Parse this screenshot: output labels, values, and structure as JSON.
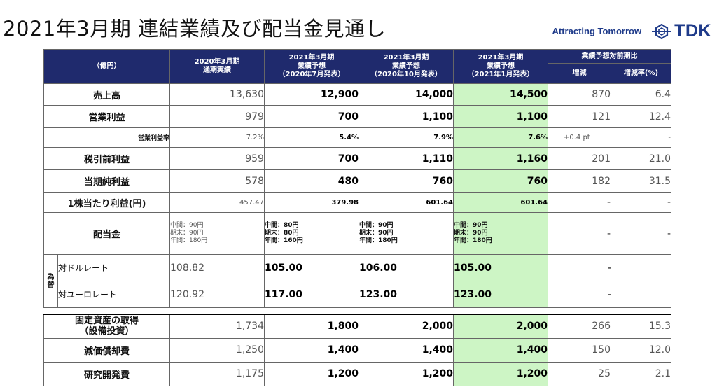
{
  "title": "2021年3月期 連結業績及び配当金見通し",
  "tagline": "Attracting Tomorrow",
  "logo_text": "TDK",
  "unit": "（億円）",
  "headers": {
    "col1": [
      "2020年3月期",
      "通期実績"
    ],
    "col2": [
      "2021年3月期",
      "業績予想",
      "（2020年7月発表）"
    ],
    "col3": [
      "2021年3月期",
      "業績予想",
      "（2020年10月発表）"
    ],
    "col4": [
      "2021年3月期",
      "業績予想",
      "（2021年1月発表）"
    ],
    "compare": "業績予想対前期比",
    "diff": "増減",
    "diff_pct": "増減率(%)"
  },
  "rows": {
    "sales": {
      "label": "売上高",
      "v": [
        "13,630",
        "12,900",
        "14,000",
        "14,500",
        "870",
        "6.4"
      ]
    },
    "op": {
      "label": "営業利益",
      "v": [
        "979",
        "700",
        "1,100",
        "1,100",
        "121",
        "12.4"
      ]
    },
    "margin": {
      "label": "営業利益率",
      "v": [
        "7.2%",
        "5.4%",
        "7.9%",
        "7.6%",
        "+0.4 pt",
        "-"
      ]
    },
    "pretax": {
      "label": "税引前利益",
      "v": [
        "959",
        "700",
        "1,110",
        "1,160",
        "201",
        "21.0"
      ]
    },
    "net": {
      "label": "当期純利益",
      "v": [
        "578",
        "480",
        "760",
        "760",
        "182",
        "31.5"
      ]
    },
    "eps": {
      "label": "1株当たり利益(円)",
      "v": [
        "457.47",
        "379.98",
        "601.64",
        "601.64",
        "-",
        "-"
      ]
    },
    "dividend": {
      "label": "配当金",
      "c1": [
        "中間：90円",
        "期末：90円",
        "年間：180円"
      ],
      "c2": [
        "中間：80円",
        "期末：80円",
        "年間：160円"
      ],
      "c3": [
        "中間：90円",
        "期末：90円",
        "年間：180円"
      ],
      "c4": [
        "中間：90円",
        "期末：90円",
        "年間：180円"
      ],
      "d": [
        "-",
        "-"
      ]
    },
    "fx": {
      "group": [
        "為",
        "替"
      ],
      "usd": {
        "label": "対ドルレート",
        "v": [
          "108.82",
          "105.00",
          "106.00",
          "105.00",
          "-"
        ]
      },
      "eur": {
        "label": "対ユーロレート",
        "v": [
          "120.92",
          "117.00",
          "123.00",
          "123.00",
          "-"
        ]
      }
    },
    "capex": {
      "label": [
        "固定資産の取得",
        "（設備投資）"
      ],
      "v": [
        "1,734",
        "1,800",
        "2,000",
        "2,000",
        "266",
        "15.3"
      ]
    },
    "depr": {
      "label": "減価償却費",
      "v": [
        "1,250",
        "1,400",
        "1,400",
        "1,400",
        "150",
        "12.0"
      ]
    },
    "rnd": {
      "label": "研究開発費",
      "v": [
        "1,175",
        "1,200",
        "1,200",
        "1,200",
        "25",
        "2.1"
      ]
    }
  },
  "colors": {
    "header_bg": "#1f2a6d",
    "highlight": "#cdf5c5",
    "brand": "#1f3b8a"
  }
}
